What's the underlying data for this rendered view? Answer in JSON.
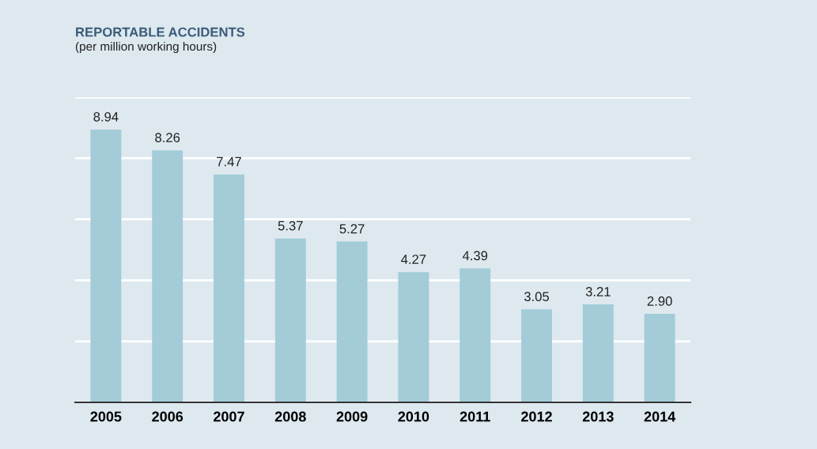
{
  "chart_data": {
    "type": "bar",
    "title": "REPORTABLE ACCIDENTS",
    "subtitle": "(per million working hours)",
    "categories": [
      "2005",
      "2006",
      "2007",
      "2008",
      "2009",
      "2010",
      "2011",
      "2012",
      "2013",
      "2014"
    ],
    "values": [
      8.94,
      8.26,
      7.47,
      5.37,
      5.27,
      4.27,
      4.39,
      3.05,
      3.21,
      2.9
    ],
    "value_labels": [
      "8.94",
      "8.26",
      "7.47",
      "5.37",
      "5.27",
      "4.27",
      "4.39",
      "3.05",
      "3.21",
      "2.90"
    ],
    "color": "#a3cbd8",
    "ylim": [
      0,
      10
    ],
    "yticks": [
      {
        "value": 0,
        "label": null
      },
      {
        "value": 2,
        "label": null
      },
      {
        "value": 4,
        "label": null
      },
      {
        "value": 6,
        "label": null
      },
      {
        "value": 8,
        "label": null
      },
      {
        "value": 10,
        "label": null
      }
    ],
    "grid": "y",
    "tick_labels": "x"
  }
}
